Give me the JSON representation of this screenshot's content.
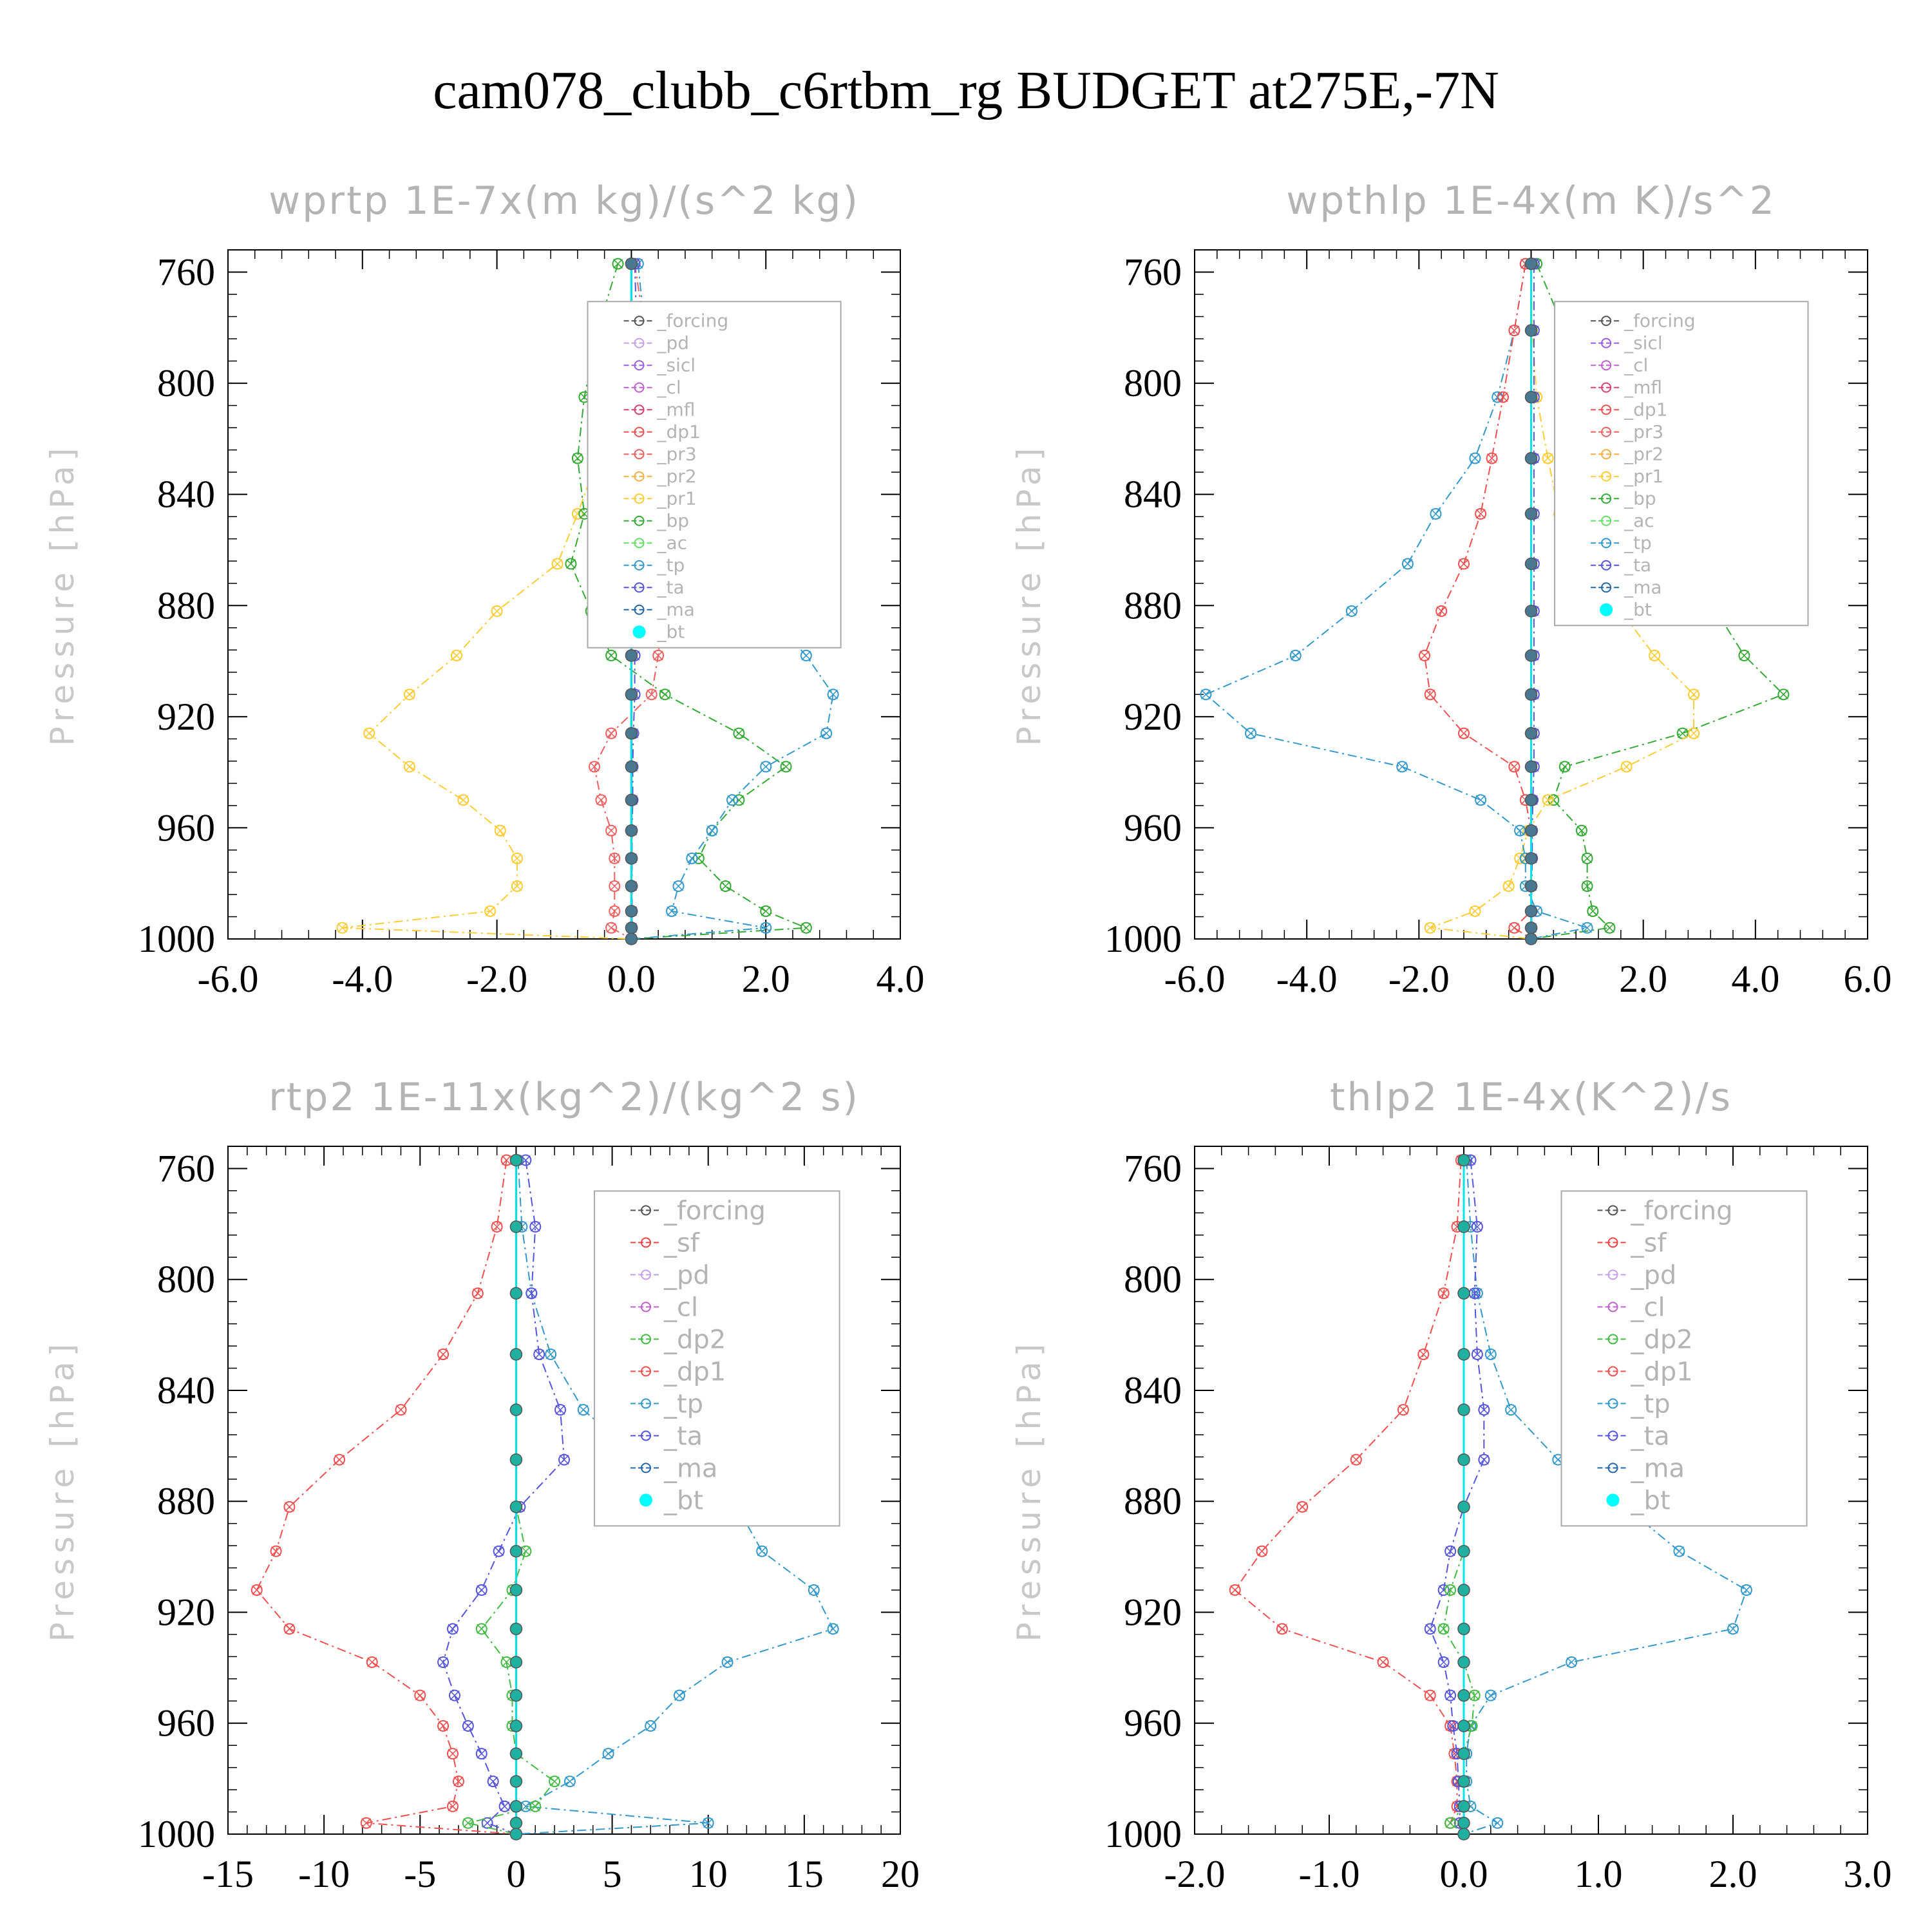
{
  "title": "cam078_clubb_c6rtbm_rg  BUDGET at275E,-7N",
  "colors": {
    "forcing": "#555555",
    "pd": "#c8a0e8",
    "sicl": "#9a5de0",
    "cl": "#c060d0",
    "mfl": "#d84070",
    "dp1": "#f05050",
    "pr3": "#f06060",
    "pr2": "#f5b040",
    "pr1": "#ffcc33",
    "bp": "#33aa33",
    "ac": "#66dd66",
    "tp": "#3399cc",
    "ta": "#5555dd",
    "ma": "#2266aa",
    "bt": "#00e5e5",
    "sf": "#ee4444",
    "dp2": "#44bb44"
  },
  "chart_data": [
    {
      "type": "line",
      "title": "wprtp  1E-7x(m kg)/(s^2 kg)",
      "ylabel": "Pressure [hPa]",
      "xlim": [
        -6,
        4
      ],
      "ylim": [
        1000,
        752
      ],
      "y_reversed": true,
      "xticks": [
        "-6.0",
        "-4.0",
        "-2.0",
        "0.0",
        "2.0",
        "4.0"
      ],
      "yticks": [
        "760",
        "800",
        "840",
        "880",
        "920",
        "960",
        "1000"
      ],
      "legend": [
        "_forcing",
        "_pd",
        "_sicl",
        "_cl",
        "_mfl",
        "_dp1",
        "_pr3",
        "_pr2",
        "_pr1",
        "_bp",
        "_ac",
        "_tp",
        "_ta",
        "_ma",
        "_bt"
      ],
      "legend_placement": "top-right",
      "levels": [
        757,
        781,
        805,
        827,
        847,
        865,
        882,
        898,
        912,
        926,
        938,
        950,
        961,
        971,
        981,
        990,
        996,
        1000
      ],
      "series": [
        {
          "key": "pr1",
          "values": [
            0,
            0,
            -0.15,
            -0.5,
            -0.8,
            -1.1,
            -2.0,
            -2.6,
            -3.3,
            -3.9,
            -3.3,
            -2.5,
            -1.95,
            -1.7,
            -1.7,
            -2.1,
            -4.3,
            0
          ]
        },
        {
          "key": "bp",
          "values": [
            -0.2,
            -0.5,
            -0.7,
            -0.8,
            -0.7,
            -0.9,
            -0.6,
            -0.3,
            0.5,
            1.6,
            2.3,
            1.6,
            1.2,
            1.0,
            1.4,
            2.0,
            2.6,
            0
          ]
        },
        {
          "key": "tp",
          "values": [
            0.1,
            0.2,
            0.35,
            0.7,
            1.0,
            1.5,
            2.0,
            2.6,
            3.0,
            2.9,
            2.0,
            1.5,
            1.2,
            0.9,
            0.7,
            0.6,
            2.0,
            0
          ]
        },
        {
          "key": "pr3",
          "values": [
            0.05,
            0.2,
            0.3,
            0.4,
            0.5,
            0.55,
            0.45,
            0.4,
            0.3,
            -0.3,
            -0.55,
            -0.45,
            -0.3,
            -0.25,
            -0.25,
            -0.25,
            -0.3,
            0
          ]
        },
        {
          "key": "forcing",
          "values": [
            0,
            0,
            0,
            0,
            0,
            0,
            0,
            0,
            0,
            0,
            0,
            0,
            0,
            0,
            0,
            0,
            0,
            0
          ]
        },
        {
          "key": "ta",
          "values": [
            0.05,
            0.08,
            0.1,
            0.1,
            0.1,
            0.1,
            0.08,
            0.05,
            0.05,
            0.03,
            0.02,
            0.02,
            0.01,
            0.01,
            0.01,
            0.01,
            0.01,
            0
          ]
        },
        {
          "key": "ma",
          "values": [
            0,
            0,
            0,
            0,
            0,
            0,
            0,
            0,
            0,
            0,
            0,
            0,
            0,
            0,
            0,
            0,
            0,
            0
          ]
        },
        {
          "key": "bt",
          "values": [
            0,
            0,
            0,
            0,
            0,
            0,
            0,
            0,
            0,
            0,
            0,
            0,
            0,
            0,
            0,
            0,
            0,
            0
          ]
        }
      ]
    },
    {
      "type": "line",
      "title": "wpthlp  1E-4x(m K)/s^2",
      "ylabel": "Pressure [hPa]",
      "xlim": [
        -6,
        6
      ],
      "ylim": [
        1000,
        752
      ],
      "y_reversed": true,
      "xticks": [
        "-6.0",
        "-4.0",
        "-2.0",
        "0.0",
        "2.0",
        "4.0",
        "6.0"
      ],
      "yticks": [
        "760",
        "800",
        "840",
        "880",
        "920",
        "960",
        "1000"
      ],
      "legend": [
        "_forcing",
        "_sicl",
        "_cl",
        "_mfl",
        "_dp1",
        "_pr3",
        "_pr2",
        "_pr1",
        "_bp",
        "_ac",
        "_tp",
        "_ta",
        "_ma",
        "_bt"
      ],
      "legend_placement": "top-right",
      "levels": [
        757,
        781,
        805,
        827,
        847,
        865,
        882,
        898,
        912,
        926,
        938,
        950,
        961,
        971,
        981,
        990,
        996,
        1000
      ],
      "series": [
        {
          "key": "bp",
          "values": [
            0.1,
            0.6,
            1.2,
            1.7,
            2.2,
            2.8,
            3.3,
            3.8,
            4.5,
            2.7,
            0.6,
            0.4,
            0.9,
            1.0,
            1.0,
            1.1,
            1.4,
            0
          ]
        },
        {
          "key": "pr1",
          "values": [
            0,
            0.02,
            0.1,
            0.3,
            0.5,
            0.9,
            1.6,
            2.2,
            2.9,
            2.9,
            1.7,
            0.3,
            -0.05,
            -0.2,
            -0.4,
            -1.0,
            -1.8,
            0
          ]
        },
        {
          "key": "tp",
          "values": [
            -0.1,
            -0.3,
            -0.6,
            -1.0,
            -1.7,
            -2.2,
            -3.2,
            -4.2,
            -5.8,
            -5.0,
            -2.3,
            -0.9,
            -0.2,
            -0.1,
            -0.1,
            0.1,
            1.0,
            0
          ]
        },
        {
          "key": "dp1",
          "values": [
            -0.1,
            -0.3,
            -0.5,
            -0.7,
            -0.9,
            -1.2,
            -1.6,
            -1.9,
            -1.8,
            -1.2,
            -0.3,
            -0.1,
            0,
            0,
            0,
            0,
            -0.3,
            0
          ]
        },
        {
          "key": "forcing",
          "values": [
            0,
            0,
            0,
            0,
            0,
            0,
            0,
            0,
            0,
            0,
            0,
            0,
            0,
            0,
            0,
            0,
            0,
            0
          ]
        },
        {
          "key": "ta",
          "values": [
            0.05,
            0.05,
            0.05,
            0.05,
            0.05,
            0.05,
            0.05,
            0.05,
            0.05,
            0.05,
            0.05,
            0.03,
            0.02,
            0.02,
            0.01,
            0.01,
            0.01,
            0
          ]
        },
        {
          "key": "bt",
          "values": [
            0,
            0,
            0,
            0,
            0,
            0,
            0,
            0,
            0,
            0,
            0,
            0,
            0,
            0,
            0,
            0,
            0,
            0
          ]
        }
      ]
    },
    {
      "type": "line",
      "title": "rtp2  1E-11x(kg^2)/(kg^2 s)",
      "ylabel": "Pressure [hPa]",
      "xlim": [
        -15,
        20
      ],
      "ylim": [
        1000,
        752
      ],
      "y_reversed": true,
      "xticks": [
        "-15",
        "-10",
        "-5",
        "0",
        "5",
        "10",
        "15",
        "20"
      ],
      "yticks": [
        "760",
        "800",
        "840",
        "880",
        "920",
        "960",
        "1000"
      ],
      "legend": [
        "_forcing",
        "_sf",
        "_pd",
        "_cl",
        "_dp2",
        "_dp1",
        "_tp",
        "_ta",
        "_ma",
        "_bt"
      ],
      "legend_placement": "top-right",
      "levels": [
        757,
        781,
        805,
        827,
        847,
        865,
        882,
        898,
        912,
        926,
        938,
        950,
        961,
        971,
        981,
        990,
        996,
        1000
      ],
      "series": [
        {
          "key": "dp1",
          "values": [
            -0.5,
            -1.0,
            -2.0,
            -3.8,
            -6.0,
            -9.2,
            -11.8,
            -12.5,
            -13.5,
            -11.8,
            -7.5,
            -5.0,
            -3.8,
            -3.3,
            -3.0,
            -3.3,
            -7.8,
            0
          ]
        },
        {
          "key": "tp",
          "values": [
            0.1,
            0.3,
            0.8,
            1.8,
            3.5,
            6.5,
            11.5,
            12.8,
            15.5,
            16.5,
            11.0,
            8.5,
            7.0,
            4.8,
            2.8,
            0.5,
            10.0,
            0
          ]
        },
        {
          "key": "ta",
          "values": [
            0.5,
            1.0,
            0.8,
            1.2,
            2.3,
            2.5,
            0.2,
            -0.9,
            -1.8,
            -3.3,
            -3.8,
            -3.2,
            -2.5,
            -1.8,
            -1.2,
            -0.6,
            -1.5,
            0
          ]
        },
        {
          "key": "dp2",
          "values": [
            0,
            0,
            0,
            0,
            0,
            0,
            0,
            0.5,
            -0.2,
            -1.8,
            -0.5,
            -0.2,
            -0.2,
            0,
            2.0,
            1.0,
            -2.5,
            0
          ]
        },
        {
          "key": "forcing",
          "values": [
            0,
            0,
            0,
            0,
            0,
            0,
            0,
            0,
            0,
            0,
            0,
            0,
            0,
            0,
            0,
            0,
            0,
            0
          ]
        },
        {
          "key": "bt",
          "values": [
            0,
            0,
            0,
            0,
            0,
            0,
            0,
            0,
            0,
            0,
            0,
            0,
            0,
            0,
            0,
            0,
            0,
            0
          ]
        }
      ]
    },
    {
      "type": "line",
      "title": "thlp2  1E-4x(K^2)/s",
      "ylabel": "Pressure [hPa]",
      "xlim": [
        -2,
        3
      ],
      "ylim": [
        1000,
        752
      ],
      "y_reversed": true,
      "xticks": [
        "-2.0",
        "-1.0",
        "0.0",
        "1.0",
        "2.0",
        "3.0"
      ],
      "yticks": [
        "760",
        "800",
        "840",
        "880",
        "920",
        "960",
        "1000"
      ],
      "legend": [
        "_forcing",
        "_sf",
        "_pd",
        "_cl",
        "_dp2",
        "_dp1",
        "_tp",
        "_ta",
        "_ma",
        "_bt"
      ],
      "legend_placement": "top-right",
      "levels": [
        757,
        781,
        805,
        827,
        847,
        865,
        882,
        898,
        912,
        926,
        938,
        950,
        961,
        971,
        981,
        990,
        996,
        1000
      ],
      "series": [
        {
          "key": "dp1",
          "values": [
            -0.02,
            -0.05,
            -0.15,
            -0.3,
            -0.45,
            -0.8,
            -1.2,
            -1.5,
            -1.7,
            -1.35,
            -0.6,
            -0.25,
            -0.1,
            -0.07,
            -0.05,
            -0.05,
            -0.1,
            0
          ]
        },
        {
          "key": "tp",
          "values": [
            0.02,
            0.05,
            0.1,
            0.2,
            0.35,
            0.7,
            1.2,
            1.6,
            2.1,
            2.0,
            0.8,
            0.2,
            0.05,
            0.02,
            0.02,
            0.05,
            0.25,
            0
          ]
        },
        {
          "key": "ta",
          "values": [
            0.05,
            0.1,
            0.08,
            0.1,
            0.15,
            0.15,
            0,
            -0.1,
            -0.15,
            -0.25,
            -0.15,
            -0.1,
            -0.08,
            -0.05,
            -0.04,
            -0.03,
            -0.03,
            0
          ]
        },
        {
          "key": "dp2",
          "values": [
            0,
            0,
            0,
            0,
            0,
            0,
            0,
            0,
            -0.1,
            -0.15,
            0,
            0.08,
            0.06,
            0,
            0,
            0,
            -0.1,
            0
          ]
        },
        {
          "key": "forcing",
          "values": [
            0,
            0,
            0,
            0,
            0,
            0,
            0,
            0,
            0,
            0,
            0,
            0,
            0,
            0,
            0,
            0,
            0,
            0
          ]
        },
        {
          "key": "bt",
          "values": [
            0,
            0,
            0,
            0,
            0,
            0,
            0,
            0,
            0,
            0,
            0,
            0,
            0,
            0,
            0,
            0,
            0,
            0
          ]
        }
      ]
    }
  ]
}
